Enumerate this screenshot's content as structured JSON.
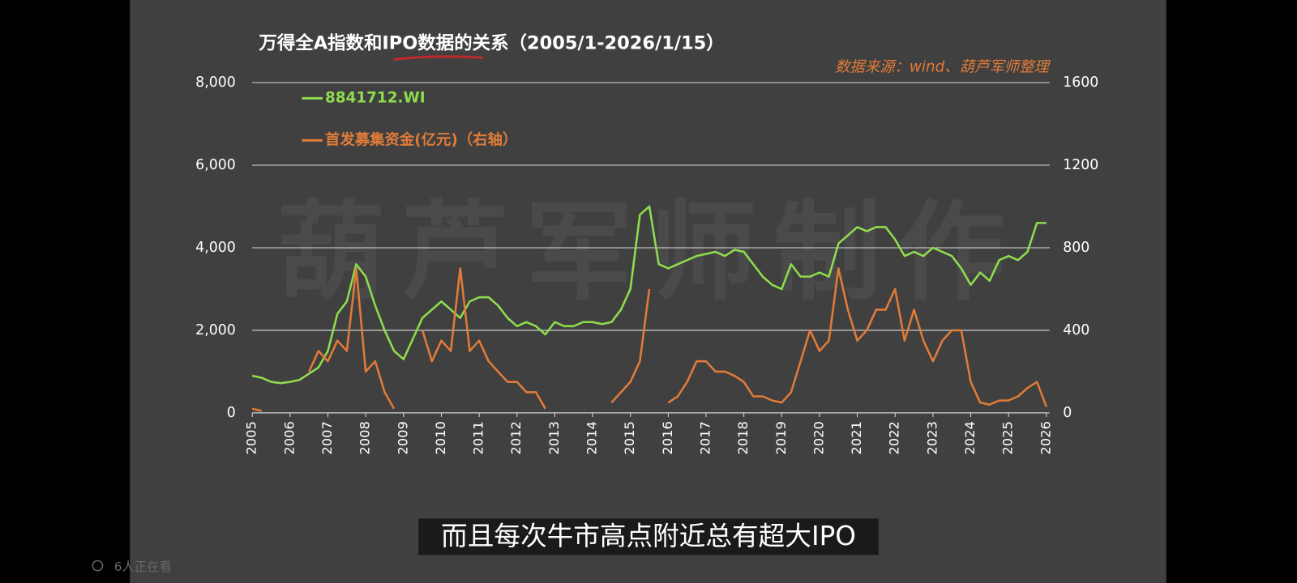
{
  "chart_data": {
    "type": "line",
    "title": "万得全A指数和IPO数据的关系（2005/1-2026/1/15）",
    "source": "数据来源：wind、葫芦军师整理",
    "watermark": "葫芦军师制作",
    "x": [
      2005,
      2005.25,
      2005.5,
      2005.75,
      2006,
      2006.25,
      2006.5,
      2006.75,
      2007,
      2007.25,
      2007.5,
      2007.75,
      2008,
      2008.25,
      2008.5,
      2008.75,
      2009,
      2009.25,
      2009.5,
      2009.75,
      2010,
      2010.25,
      2010.5,
      2010.75,
      2011,
      2011.25,
      2011.5,
      2011.75,
      2012,
      2012.25,
      2012.5,
      2012.75,
      2013,
      2013.25,
      2013.5,
      2013.75,
      2014,
      2014.25,
      2014.5,
      2014.75,
      2015,
      2015.25,
      2015.5,
      2015.75,
      2016,
      2016.25,
      2016.5,
      2016.75,
      2017,
      2017.25,
      2017.5,
      2017.75,
      2018,
      2018.25,
      2018.5,
      2018.75,
      2019,
      2019.25,
      2019.5,
      2019.75,
      2020,
      2020.25,
      2020.5,
      2020.75,
      2021,
      2021.25,
      2021.5,
      2021.75,
      2022,
      2022.25,
      2022.5,
      2022.75,
      2023,
      2023.25,
      2023.5,
      2023.75,
      2024,
      2024.25,
      2024.5,
      2024.75,
      2025,
      2025.25,
      2025.5,
      2025.75,
      2026
    ],
    "series": [
      {
        "name": "8841712.WI",
        "color": "#8fdc4e",
        "values": [
          900,
          850,
          750,
          720,
          750,
          800,
          950,
          1100,
          1500,
          2400,
          2700,
          3600,
          3300,
          2600,
          2000,
          1500,
          1300,
          1800,
          2300,
          2500,
          2700,
          2500,
          2300,
          2700,
          2800,
          2800,
          2600,
          2300,
          2100,
          2200,
          2100,
          1900,
          2200,
          2100,
          2100,
          2200,
          2200,
          2150,
          2200,
          2500,
          3000,
          4800,
          5000,
          3600,
          3500,
          3600,
          3700,
          3800,
          3850,
          3900,
          3800,
          3950,
          3900,
          3600,
          3300,
          3100,
          3000,
          3600,
          3300,
          3300,
          3400,
          3300,
          4100,
          4300,
          4500,
          4400,
          4500,
          4500,
          4200,
          3800,
          3900,
          3800,
          4000,
          3900,
          3800,
          3500,
          3100,
          3400,
          3200,
          3700,
          3800,
          3700,
          3900,
          4600,
          4600
        ]
      },
      {
        "name": "首发募集资金(亿元)（右轴）",
        "color": "#e07b39",
        "axis": "y2",
        "values": [
          20,
          10,
          null,
          null,
          null,
          null,
          200,
          300,
          250,
          350,
          300,
          700,
          200,
          250,
          100,
          20,
          null,
          null,
          400,
          250,
          350,
          300,
          700,
          300,
          350,
          250,
          200,
          150,
          150,
          100,
          100,
          20,
          null,
          null,
          null,
          null,
          100,
          null,
          50,
          100,
          150,
          250,
          600,
          null,
          50,
          80,
          150,
          250,
          250,
          200,
          200,
          180,
          150,
          80,
          80,
          60,
          50,
          100,
          250,
          400,
          300,
          350,
          700,
          500,
          350,
          400,
          500,
          500,
          600,
          350,
          500,
          350,
          250,
          350,
          400,
          400,
          150,
          50,
          40,
          60,
          60,
          80,
          120,
          150,
          30
        ]
      }
    ],
    "xlim": [
      2005,
      2026
    ],
    "xticks": [
      2005,
      2006,
      2007,
      2008,
      2009,
      2010,
      2011,
      2012,
      2013,
      2014,
      2015,
      2016,
      2017,
      2018,
      2019,
      2020,
      2021,
      2022,
      2023,
      2024,
      2025,
      2026
    ],
    "ylim": [
      0,
      8000
    ],
    "yticks": [
      0,
      {
        "value": 2000,
        "label": "2,000"
      },
      {
        "value": 4000,
        "label": "4,000"
      },
      {
        "value": 6000,
        "label": "6,000"
      },
      {
        "value": 8000,
        "label": "8,000"
      }
    ],
    "y2lim": [
      0,
      1600
    ],
    "y2ticks": [
      0,
      400,
      800,
      1200,
      1600
    ],
    "grid": true
  },
  "overlay": {
    "caption": "而且每次牛市高点附近总有超大IPO",
    "viewers": "6人正在看"
  }
}
